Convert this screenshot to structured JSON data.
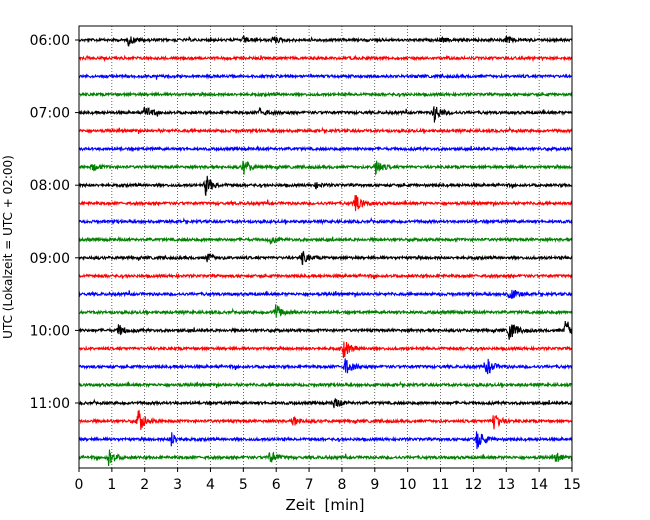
{
  "chart_data": {
    "type": "line",
    "xlabel": "Zeit  [min]",
    "ylabel": "UTC (Lokalzeit = UTC + 02:00)",
    "xlim": [
      0,
      15
    ],
    "x_ticks": [
      0,
      1,
      2,
      3,
      4,
      5,
      6,
      7,
      8,
      9,
      10,
      11,
      12,
      13,
      14,
      15
    ],
    "x_tick_labels": [
      "0",
      "1",
      "2",
      "3",
      "4",
      "5",
      "6",
      "7",
      "8",
      "9",
      "10",
      "11",
      "12",
      "13",
      "14",
      "15"
    ],
    "y_tick_labels": [
      "06:00",
      "07:00",
      "08:00",
      "09:00",
      "10:00",
      "11:00"
    ],
    "y_tick_trace_index": [
      0,
      4,
      8,
      12,
      16,
      20
    ],
    "vertical_grid": true,
    "grid_style": "dotted",
    "color_cycle": [
      "#000000",
      "#ff0000",
      "#0000ff",
      "#008000"
    ],
    "traces": [
      {
        "start": "06:00",
        "color": "#000000",
        "events": [
          {
            "t": 1.5,
            "amp": 5
          },
          {
            "t": 5.0,
            "amp": 3
          },
          {
            "t": 5.9,
            "amp": 4
          },
          {
            "t": 11.0,
            "amp": 2.5
          },
          {
            "t": 13.0,
            "amp": 3
          }
        ]
      },
      {
        "start": "06:15",
        "color": "#ff0000",
        "events": []
      },
      {
        "start": "06:30",
        "color": "#0000ff",
        "events": []
      },
      {
        "start": "06:45",
        "color": "#008000",
        "events": []
      },
      {
        "start": "07:00",
        "color": "#000000",
        "events": [
          {
            "t": 2.0,
            "amp": 8
          },
          {
            "t": 5.5,
            "amp": 4
          },
          {
            "t": 10.8,
            "amp": 10
          }
        ]
      },
      {
        "start": "07:15",
        "color": "#ff0000",
        "events": []
      },
      {
        "start": "07:30",
        "color": "#0000ff",
        "events": []
      },
      {
        "start": "07:45",
        "color": "#008000",
        "events": [
          {
            "t": 0.4,
            "amp": 4
          },
          {
            "t": 5.0,
            "amp": 8
          },
          {
            "t": 9.0,
            "amp": 9
          }
        ]
      },
      {
        "start": "08:00",
        "color": "#000000",
        "events": [
          {
            "t": 3.85,
            "amp": 11
          },
          {
            "t": 7.2,
            "amp": 2.5
          }
        ]
      },
      {
        "start": "08:15",
        "color": "#ff0000",
        "events": [
          {
            "t": 8.4,
            "amp": 9
          }
        ]
      },
      {
        "start": "08:30",
        "color": "#0000ff",
        "events": []
      },
      {
        "start": "08:45",
        "color": "#008000",
        "events": [
          {
            "t": 5.8,
            "amp": 4
          }
        ]
      },
      {
        "start": "09:00",
        "color": "#000000",
        "events": [
          {
            "t": 3.9,
            "amp": 5
          },
          {
            "t": 6.75,
            "amp": 8
          }
        ]
      },
      {
        "start": "09:15",
        "color": "#ff0000",
        "events": []
      },
      {
        "start": "09:30",
        "color": "#0000ff",
        "events": [
          {
            "t": 13.1,
            "amp": 7
          }
        ]
      },
      {
        "start": "09:45",
        "color": "#008000",
        "events": [
          {
            "t": 5.95,
            "amp": 10
          }
        ]
      },
      {
        "start": "10:00",
        "color": "#000000",
        "events": [
          {
            "t": 1.2,
            "amp": 6
          },
          {
            "t": 13.1,
            "amp": 13
          },
          {
            "t": 14.8,
            "amp": 12
          }
        ]
      },
      {
        "start": "10:15",
        "color": "#ff0000",
        "events": [
          {
            "t": 8.05,
            "amp": 10
          }
        ]
      },
      {
        "start": "10:30",
        "color": "#0000ff",
        "events": [
          {
            "t": 8.1,
            "amp": 9
          },
          {
            "t": 12.4,
            "amp": 9
          }
        ]
      },
      {
        "start": "10:45",
        "color": "#008000",
        "events": []
      },
      {
        "start": "11:00",
        "color": "#000000",
        "events": [
          {
            "t": 7.75,
            "amp": 6
          }
        ]
      },
      {
        "start": "11:15",
        "color": "#ff0000",
        "events": [
          {
            "t": 1.8,
            "amp": 13
          },
          {
            "t": 6.5,
            "amp": 6
          },
          {
            "t": 12.6,
            "amp": 10
          }
        ]
      },
      {
        "start": "11:30",
        "color": "#0000ff",
        "events": [
          {
            "t": 2.8,
            "amp": 7
          },
          {
            "t": 12.1,
            "amp": 11
          }
        ]
      },
      {
        "start": "11:45",
        "color": "#008000",
        "events": [
          {
            "t": 0.9,
            "amp": 9
          },
          {
            "t": 5.8,
            "amp": 7
          },
          {
            "t": 14.5,
            "amp": 5
          }
        ]
      }
    ]
  }
}
